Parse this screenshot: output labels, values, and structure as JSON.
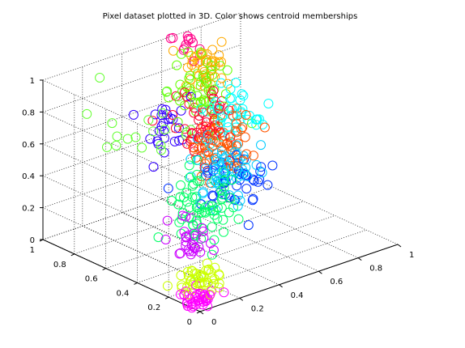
{
  "title": "Pixel dataset plotted in 3D. Color shows centroid memberships",
  "chart_data": {
    "type": "scatter",
    "marker": "open-circle",
    "view": "3d",
    "title": "Pixel dataset plotted in 3D. Color shows centroid memberships",
    "xlabel": "",
    "ylabel": "",
    "zlabel": "",
    "xlim": [
      0,
      1
    ],
    "ylim": [
      0,
      1
    ],
    "zlim": [
      0,
      1
    ],
    "x_ticks": [
      "0",
      "0.2",
      "0.4",
      "0.6",
      "0.8",
      "1"
    ],
    "y_ticks": [
      "0",
      "0.2",
      "0.4",
      "0.6",
      "0.8",
      "1"
    ],
    "z_ticks": [
      "0",
      "0.2",
      "0.4",
      "0.6",
      "0.8",
      "1"
    ],
    "grid": true,
    "clusters": [
      {
        "color": "#ff00ff",
        "center": [
          0.05,
          0.08,
          0.02
        ],
        "spread": [
          0.04,
          0.04,
          0.03
        ],
        "count": 40
      },
      {
        "color": "#ccff00",
        "center": [
          0.12,
          0.15,
          0.08
        ],
        "spread": [
          0.05,
          0.05,
          0.04
        ],
        "count": 45
      },
      {
        "color": "#cc00ff",
        "center": [
          0.2,
          0.3,
          0.25
        ],
        "spread": [
          0.06,
          0.06,
          0.08
        ],
        "count": 30
      },
      {
        "color": "#00ff66",
        "center": [
          0.32,
          0.38,
          0.35
        ],
        "spread": [
          0.07,
          0.07,
          0.1
        ],
        "count": 70
      },
      {
        "color": "#00ccff",
        "center": [
          0.55,
          0.52,
          0.42
        ],
        "spread": [
          0.07,
          0.07,
          0.08
        ],
        "count": 60
      },
      {
        "color": "#0033ff",
        "center": [
          0.6,
          0.55,
          0.3
        ],
        "spread": [
          0.08,
          0.08,
          0.07
        ],
        "count": 45
      },
      {
        "color": "#ff5500",
        "center": [
          0.62,
          0.65,
          0.52
        ],
        "spread": [
          0.07,
          0.06,
          0.08
        ],
        "count": 70
      },
      {
        "color": "#ff0033",
        "center": [
          0.55,
          0.7,
          0.62
        ],
        "spread": [
          0.06,
          0.06,
          0.1
        ],
        "count": 45
      },
      {
        "color": "#00ffff",
        "center": [
          0.72,
          0.7,
          0.62
        ],
        "spread": [
          0.06,
          0.05,
          0.07
        ],
        "count": 45
      },
      {
        "color": "#ffaa00",
        "center": [
          0.72,
          0.88,
          0.82
        ],
        "spread": [
          0.05,
          0.04,
          0.08
        ],
        "count": 40
      },
      {
        "color": "#66ff00",
        "center": [
          0.68,
          0.82,
          0.72
        ],
        "spread": [
          0.07,
          0.06,
          0.1
        ],
        "count": 55
      },
      {
        "color": "#3300ff",
        "center": [
          0.45,
          0.78,
          0.62
        ],
        "spread": [
          0.05,
          0.05,
          0.1
        ],
        "count": 25
      },
      {
        "color": "#ff0088",
        "center": [
          0.7,
          0.95,
          0.95
        ],
        "spread": [
          0.04,
          0.03,
          0.06
        ],
        "count": 12
      },
      {
        "color": "#66ff33",
        "center": [
          0.3,
          0.7,
          0.72
        ],
        "spread": [
          0.1,
          0.1,
          0.12
        ],
        "count": 20
      }
    ]
  }
}
